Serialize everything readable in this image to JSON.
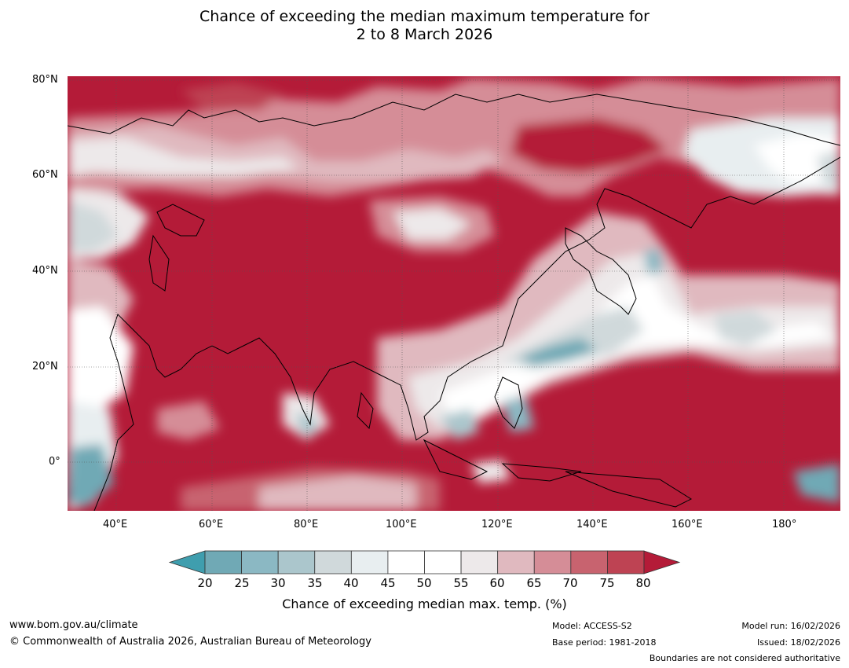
{
  "title_line1": "Chance of exceeding the median maximum temperature for",
  "title_line2": "2 to 8 March 2026",
  "lat_labels": [
    "80°N",
    "60°N",
    "40°N",
    "20°N",
    "0°"
  ],
  "lon_labels": [
    "40°E",
    "60°E",
    "80°E",
    "100°E",
    "120°E",
    "140°E",
    "160°E",
    "180°"
  ],
  "colorbar": {
    "ticks": [
      "20",
      "25",
      "30",
      "35",
      "40",
      "45",
      "50",
      "55",
      "60",
      "65",
      "70",
      "75",
      "80"
    ],
    "colors": [
      "#70a9b5",
      "#8bb8c3",
      "#abc6cc",
      "#d0d9db",
      "#e8eef0",
      "#ffffff",
      "#ffffff",
      "#ede9ea",
      "#e0b9bf",
      "#d58d97",
      "#c8636f",
      "#be4353"
    ],
    "low_color": "#3f9eae",
    "high_color": "#b41b38",
    "title": "Chance of exceeding median max. temp. (%)"
  },
  "footer": {
    "url": "www.bom.gov.au/climate",
    "copyright": "© Commonwealth of Australia 2026, Australian Bureau of Meteorology",
    "model": "Model: ACCESS-S2",
    "base_period": "Base period: 1981-2018",
    "model_run": "Model run: 16/02/2026",
    "issued": "Issued: 18/02/2026",
    "disclaimer": "Boundaries are not considered authoritative"
  }
}
